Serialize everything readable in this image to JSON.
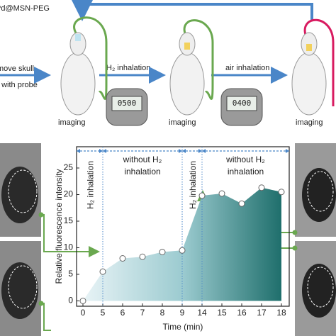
{
  "diagram": {
    "title": "Pd@MSN-PEG",
    "steps": [
      "move skull",
      "t with probe",
      "H₂ inhalation",
      "air inhalation"
    ],
    "imaging": [
      "imaging",
      "imaging",
      "imaging"
    ],
    "timers": [
      "0500",
      "0400"
    ]
  },
  "chart_data": {
    "type": "line",
    "x_label": "Time (min)",
    "y_label": "Relative fluorescence intensity",
    "categories": [
      "0",
      "5",
      "6",
      "7",
      "8",
      "9",
      "14",
      "15",
      "16",
      "17",
      "18"
    ],
    "values": [
      0,
      5.5,
      8,
      8.3,
      9.2,
      9.5,
      19.8,
      20.2,
      18.3,
      21.3,
      20.5
    ],
    "color": "#1f7a78",
    "ylim": [
      -1,
      29
    ],
    "yticks": [
      0,
      5,
      10,
      15,
      20,
      25
    ],
    "annotations": [
      {
        "lines": [
          "H₂ inhalation"
        ]
      },
      {
        "lines": [
          "without H₂",
          "inhalation"
        ]
      },
      {
        "lines": [
          "H₂ inhalation"
        ]
      },
      {
        "lines": [
          "without H₂",
          "inhalation"
        ]
      }
    ]
  }
}
